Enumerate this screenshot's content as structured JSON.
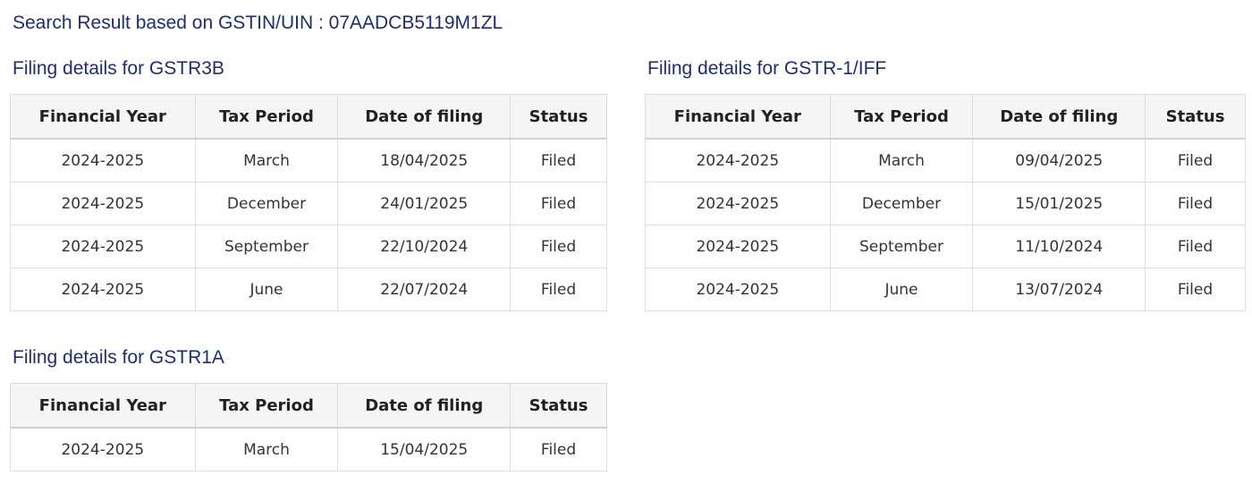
{
  "page": {
    "title": "Search Result based on GSTIN/UIN : 07AADCB5119M1ZL"
  },
  "colors": {
    "heading_navy": "#1e2d6e",
    "table_header_bg": "#f5f5f5",
    "table_border": "#dddddd",
    "cell_text": "#333333"
  },
  "tables": [
    {
      "heading": "Filing details for GSTR3B",
      "headers": [
        "Financial Year",
        "Tax Period",
        "Date of filing",
        "Status"
      ],
      "rows": [
        [
          "2024-2025",
          "March",
          "18/04/2025",
          "Filed"
        ],
        [
          "2024-2025",
          "December",
          "24/01/2025",
          "Filed"
        ],
        [
          "2024-2025",
          "September",
          "22/10/2024",
          "Filed"
        ],
        [
          "2024-2025",
          "June",
          "22/07/2024",
          "Filed"
        ]
      ]
    },
    {
      "heading": "Filing details for GSTR-1/IFF",
      "headers": [
        "Financial Year",
        "Tax Period",
        "Date of filing",
        "Status"
      ],
      "rows": [
        [
          "2024-2025",
          "March",
          "09/04/2025",
          "Filed"
        ],
        [
          "2024-2025",
          "December",
          "15/01/2025",
          "Filed"
        ],
        [
          "2024-2025",
          "September",
          "11/10/2024",
          "Filed"
        ],
        [
          "2024-2025",
          "June",
          "13/07/2024",
          "Filed"
        ]
      ]
    },
    {
      "heading": "Filing details for GSTR1A",
      "headers": [
        "Financial Year",
        "Tax Period",
        "Date of filing",
        "Status"
      ],
      "rows": [
        [
          "2024-2025",
          "March",
          "15/04/2025",
          "Filed"
        ]
      ]
    }
  ]
}
